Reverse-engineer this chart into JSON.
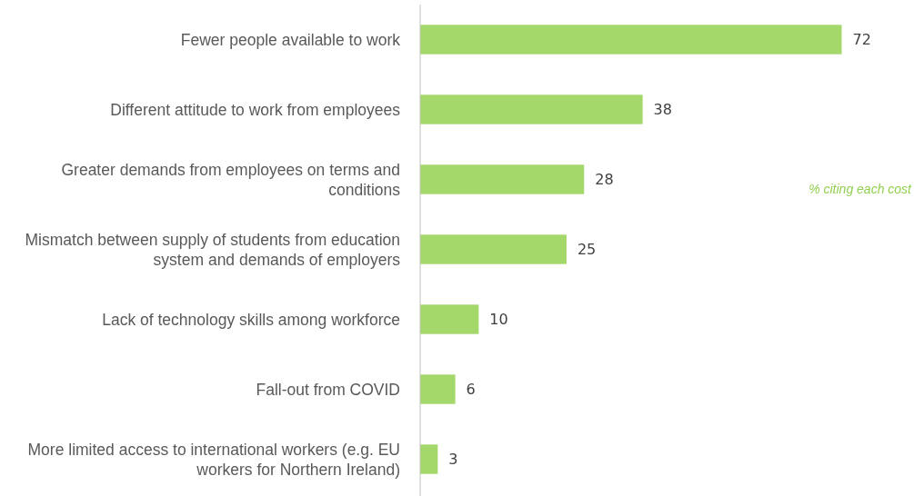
{
  "chart_data": {
    "type": "bar",
    "orientation": "horizontal",
    "categories": [
      "Fewer people available to work",
      "Different attitude to work from employees",
      "Greater demands from employees on terms and conditions",
      "Mismatch between supply of students from education system and demands of employers",
      "Lack of technology skills among workforce",
      "Fall-out from COVID",
      "More limited access to international workers (e.g. EU workers for Northern Ireland)"
    ],
    "values": [
      72,
      38,
      28,
      25,
      10,
      6,
      3
    ],
    "color": "#a5d86a",
    "data_labels": true,
    "annotations": [
      "% citing each cost"
    ]
  }
}
